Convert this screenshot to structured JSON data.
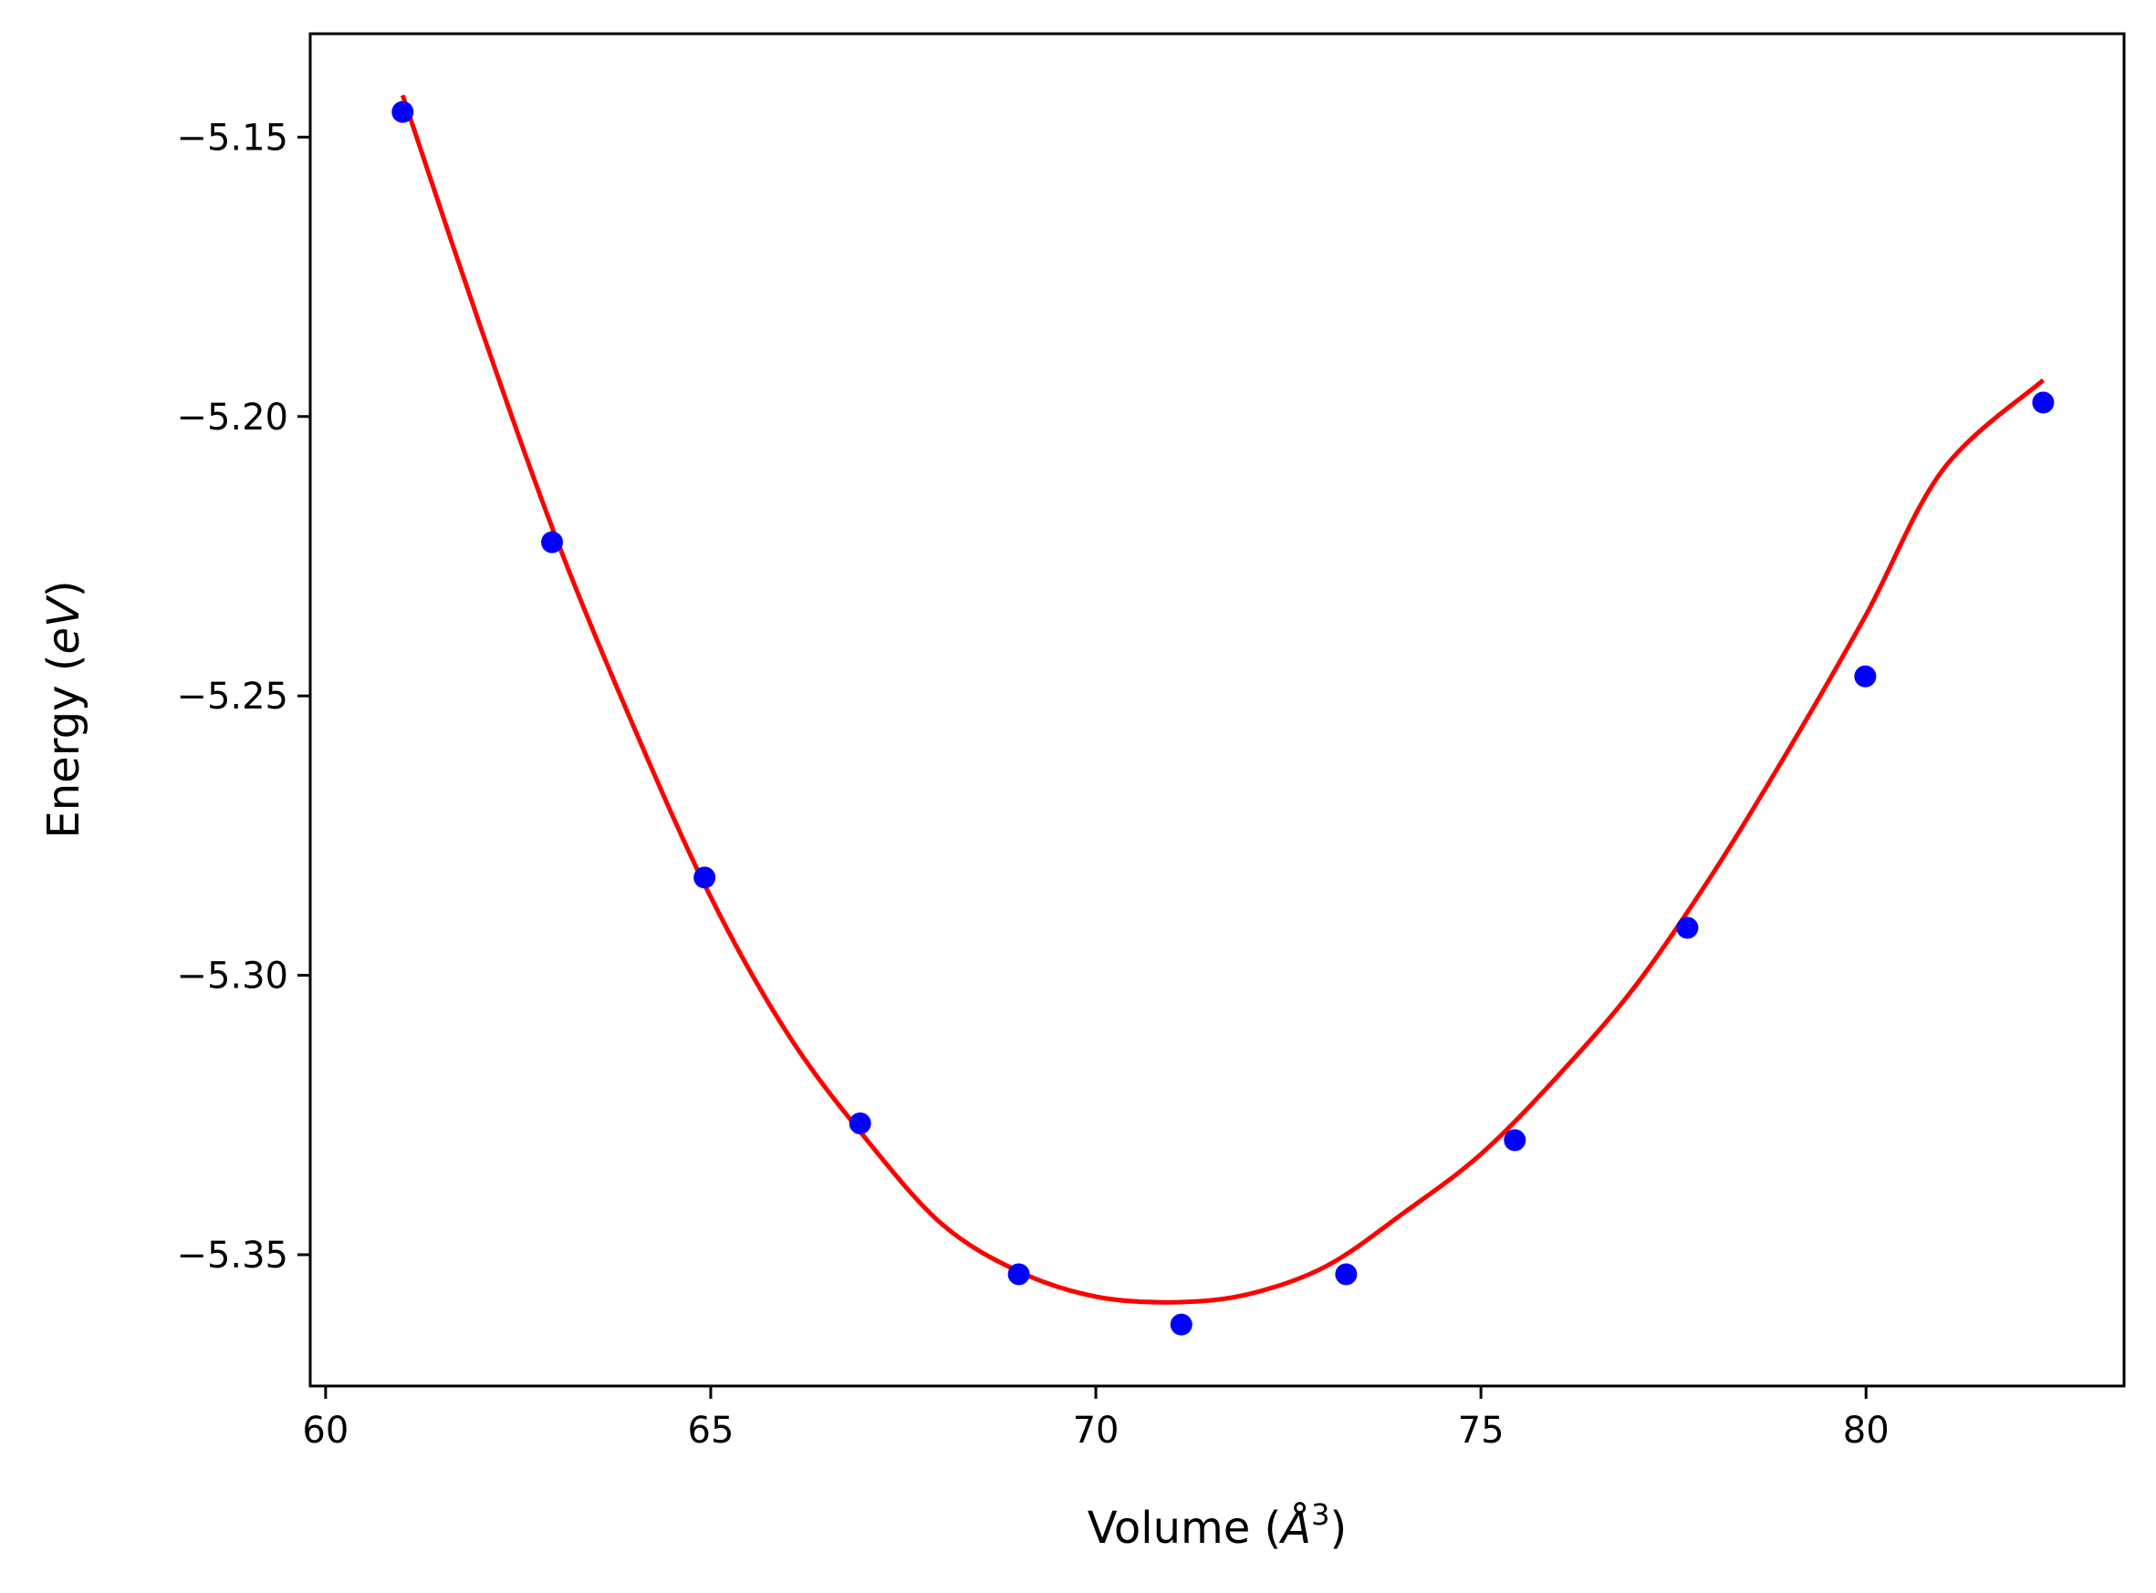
{
  "chart_data": {
    "type": "scatter",
    "title": "",
    "xlabel": "Volume (",
    "xlabel_symbol": "Å",
    "xlabel_exponent": "3",
    "xlabel_close": ")",
    "ylabel": "Energy (",
    "ylabel_unit": "eV",
    "ylabel_close": ")",
    "xlim": [
      59.8,
      83.35
    ],
    "ylim": [
      -5.3735,
      -5.1315
    ],
    "xticks": [
      60,
      65,
      70,
      75,
      80
    ],
    "xtick_labels": [
      "60",
      "65",
      "70",
      "75",
      "80"
    ],
    "yticks": [
      -5.15,
      -5.2,
      -5.25,
      -5.3,
      -5.35
    ],
    "ytick_labels": [
      "−5.15",
      "−5.20",
      "−5.25",
      "−5.30",
      "−5.35"
    ],
    "grid": false,
    "series": [
      {
        "kind": "points",
        "color": "#0000ff",
        "x": [
          61.0,
          62.94,
          64.92,
          66.94,
          69.0,
          71.11,
          73.25,
          75.44,
          77.68,
          79.99,
          82.3
        ],
        "y": [
          -5.1455,
          -5.2225,
          -5.2825,
          -5.3265,
          -5.3535,
          -5.3625,
          -5.3535,
          -5.3295,
          -5.2915,
          -5.2465,
          -5.1975
        ]
      },
      {
        "kind": "fit-line",
        "color": "#ff0000",
        "x": [
          61.0,
          62.0,
          63.0,
          64.0,
          65.0,
          66.0,
          67.0,
          68.0,
          69.0,
          70.0,
          71.05,
          72.0,
          73.0,
          74.0,
          75.0,
          76.0,
          77.0,
          78.0,
          79.0,
          80.0,
          81.0,
          82.3
        ],
        "y": [
          -5.1425,
          -5.1835,
          -5.222,
          -5.2555,
          -5.286,
          -5.3105,
          -5.329,
          -5.3445,
          -5.353,
          -5.3575,
          -5.3585,
          -5.357,
          -5.352,
          -5.3425,
          -5.332,
          -5.318,
          -5.302,
          -5.282,
          -5.2595,
          -5.2355,
          -5.2095,
          -5.1935
        ]
      }
    ]
  }
}
